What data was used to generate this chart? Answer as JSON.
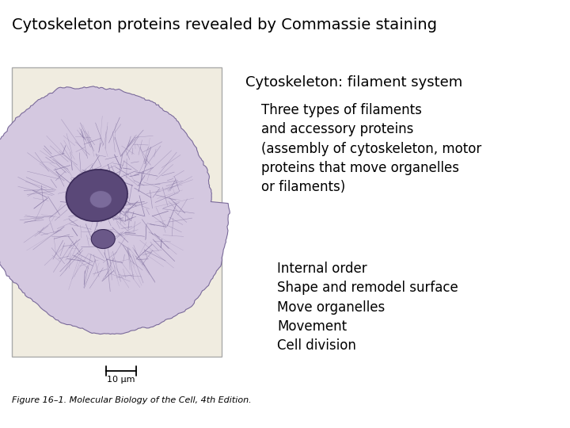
{
  "title": "Cytoskeleton proteins revealed by Commassie staining",
  "title_fontsize": 14,
  "subtitle": "Cytoskeleton: filament system",
  "subtitle_fontsize": 13,
  "body_text": "Three types of filaments\nand accessory proteins\n(assembly of cytoskeleton, motor\nproteins that move organelles\nor filaments)",
  "body_fontsize": 12,
  "list_text": "Internal order\nShape and remodel surface\nMove organelles\nMovement\nCell division",
  "list_fontsize": 12,
  "caption": "Figure 16–1. Molecular Biology of the Cell, 4th Edition.",
  "caption_fontsize": 8,
  "background_color": "#ffffff",
  "text_color": "#000000",
  "cell_bg": "#f0ece0",
  "cell_fill": "#d4c8e0",
  "cell_edge": "#7a6a9a",
  "nucleus_fill": "#5a4878",
  "nucleus_edge": "#3a2a58",
  "nucleolus_fill": "#8a7aaa",
  "small_body_fill": "#6a5888",
  "filament_color": "#7a6a9a",
  "scalebar_color": "#000000"
}
